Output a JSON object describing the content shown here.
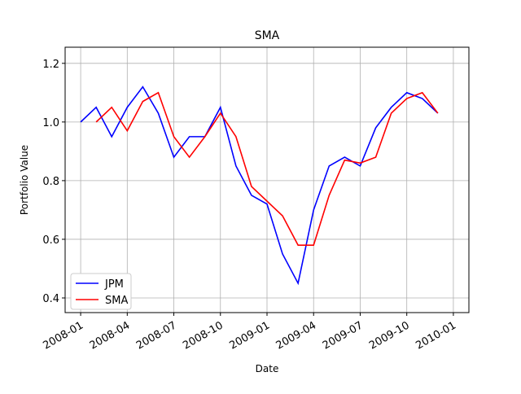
{
  "chart_data": {
    "type": "line",
    "title": "SMA",
    "x_label": "Date",
    "y_label": "Portfolio Value",
    "x": [
      "2008-01",
      "2008-02",
      "2008-03",
      "2008-04",
      "2008-05",
      "2008-06",
      "2008-07",
      "2008-08",
      "2008-09",
      "2008-10",
      "2008-11",
      "2008-12",
      "2009-01",
      "2009-02",
      "2009-03",
      "2009-04",
      "2009-05",
      "2009-06",
      "2009-07",
      "2009-08",
      "2009-09",
      "2009-10",
      "2009-11",
      "2009-12"
    ],
    "series": [
      {
        "name": "JPM",
        "color": "#0000ff",
        "values": [
          1.0,
          1.05,
          0.95,
          1.05,
          1.12,
          1.03,
          0.88,
          0.95,
          0.95,
          1.05,
          0.85,
          0.75,
          0.72,
          0.55,
          0.45,
          0.7,
          0.85,
          0.88,
          0.85,
          0.98,
          1.05,
          1.1,
          1.08,
          1.03
        ]
      },
      {
        "name": "SMA",
        "color": "#ff0000",
        "values": [
          null,
          1.0,
          1.05,
          0.97,
          1.07,
          1.1,
          0.95,
          0.88,
          0.95,
          1.03,
          0.95,
          0.78,
          0.73,
          0.68,
          0.58,
          0.58,
          0.75,
          0.87,
          0.86,
          0.88,
          1.03,
          1.08,
          1.1,
          1.03
        ]
      }
    ],
    "xlim": [
      "2007-12",
      "2010-02"
    ],
    "xticks": [
      "2008-01",
      "2008-04",
      "2008-07",
      "2008-10",
      "2009-01",
      "2009-04",
      "2009-07",
      "2009-10",
      "2010-01"
    ],
    "ylim": [
      0.35,
      1.255
    ],
    "yticks": [
      0.4,
      0.6,
      0.8,
      {
        "value": 1,
        "label": "1.0"
      },
      1.2
    ],
    "grid": true,
    "legend": "lower left"
  }
}
